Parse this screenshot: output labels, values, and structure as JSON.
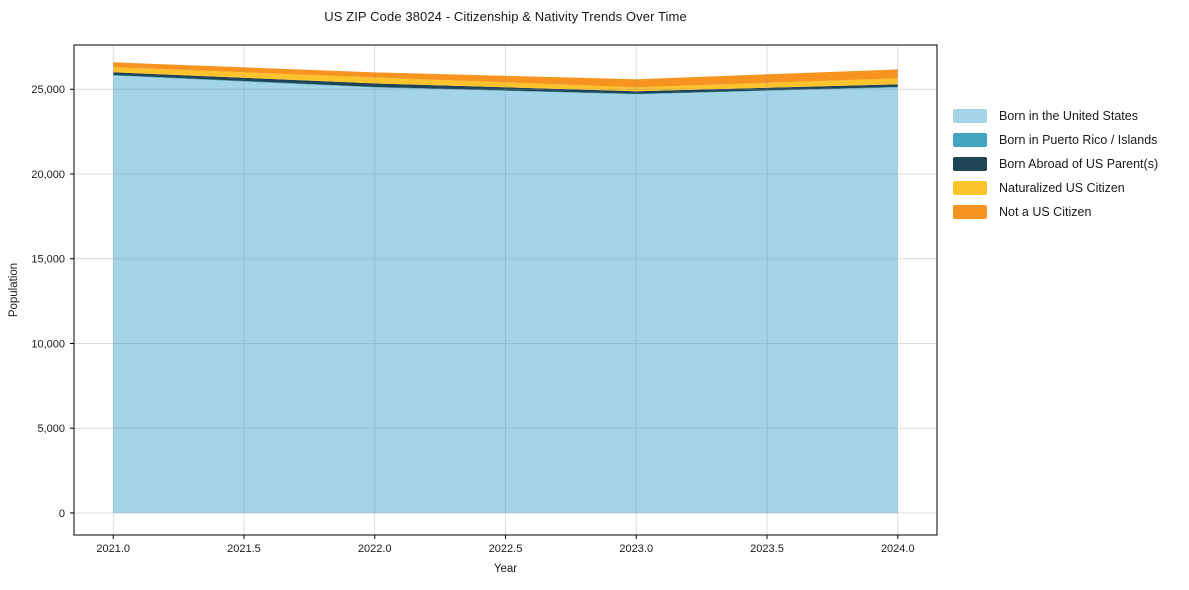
{
  "title": "US ZIP Code 38024 - Citizenship & Nativity Trends Over Time",
  "axes": {
    "xlabel": "Year",
    "ylabel": "Population",
    "x_ticks": [
      {
        "value": 2021.0,
        "label": "2021.0"
      },
      {
        "value": 2021.5,
        "label": "2021.5"
      },
      {
        "value": 2022.0,
        "label": "2022.0"
      },
      {
        "value": 2022.5,
        "label": "2022.5"
      },
      {
        "value": 2023.0,
        "label": "2023.0"
      },
      {
        "value": 2023.5,
        "label": "2023.5"
      },
      {
        "value": 2024.0,
        "label": "2024.0"
      }
    ],
    "y_ticks": [
      {
        "value": 0,
        "label": "0"
      },
      {
        "value": 5000,
        "label": "5,000"
      },
      {
        "value": 10000,
        "label": "10,000"
      },
      {
        "value": 15000,
        "label": "15,000"
      },
      {
        "value": 20000,
        "label": "20,000"
      },
      {
        "value": 25000,
        "label": "25,000"
      }
    ]
  },
  "legend": {
    "position": "right-outside",
    "items": [
      {
        "label": "Born in the United States",
        "color": "#a3d4e8"
      },
      {
        "label": "Born in Puerto Rico / Islands",
        "color": "#44a5c2"
      },
      {
        "label": "Born Abroad of US Parent(s)",
        "color": "#1f4456"
      },
      {
        "label": "Naturalized US Citizen",
        "color": "#fcc32d"
      },
      {
        "label": "Not a US Citizen",
        "color": "#f7941f"
      }
    ]
  },
  "chart_data": {
    "type": "area",
    "stacked": true,
    "title": "US ZIP Code 38024 - Citizenship & Nativity Trends Over Time",
    "xlabel": "Year",
    "ylabel": "Population",
    "x": [
      2021,
      2022,
      2023,
      2024
    ],
    "series": [
      {
        "name": "Born in the United States",
        "color": "#a3d4e8",
        "values": [
          25800,
          25100,
          24700,
          25100
        ]
      },
      {
        "name": "Born in Puerto Rico / Islands",
        "color": "#44a5c2",
        "values": [
          40,
          35,
          30,
          35
        ]
      },
      {
        "name": "Born Abroad of US Parent(s)",
        "color": "#1f4456",
        "values": [
          160,
          210,
          150,
          155
        ]
      },
      {
        "name": "Naturalized US Citizen",
        "color": "#fcc32d",
        "values": [
          300,
          350,
          230,
          350
        ]
      },
      {
        "name": "Not a US Citizen",
        "color": "#f7941f",
        "values": [
          290,
          300,
          480,
          530
        ]
      }
    ],
    "totals": [
      26590,
      25995,
      25590,
      26170
    ],
    "xlim": [
      2020.85,
      2024.15
    ],
    "ylim": [
      -1300,
      27610
    ],
    "grid": true,
    "grid_alpha": 0.3,
    "legend_position": "upper right outside"
  },
  "colors": {
    "background": "#ffffff",
    "spine": "#000000",
    "grid": "rgba(140,140,140,0.3)",
    "text": "#1a1a1a"
  }
}
